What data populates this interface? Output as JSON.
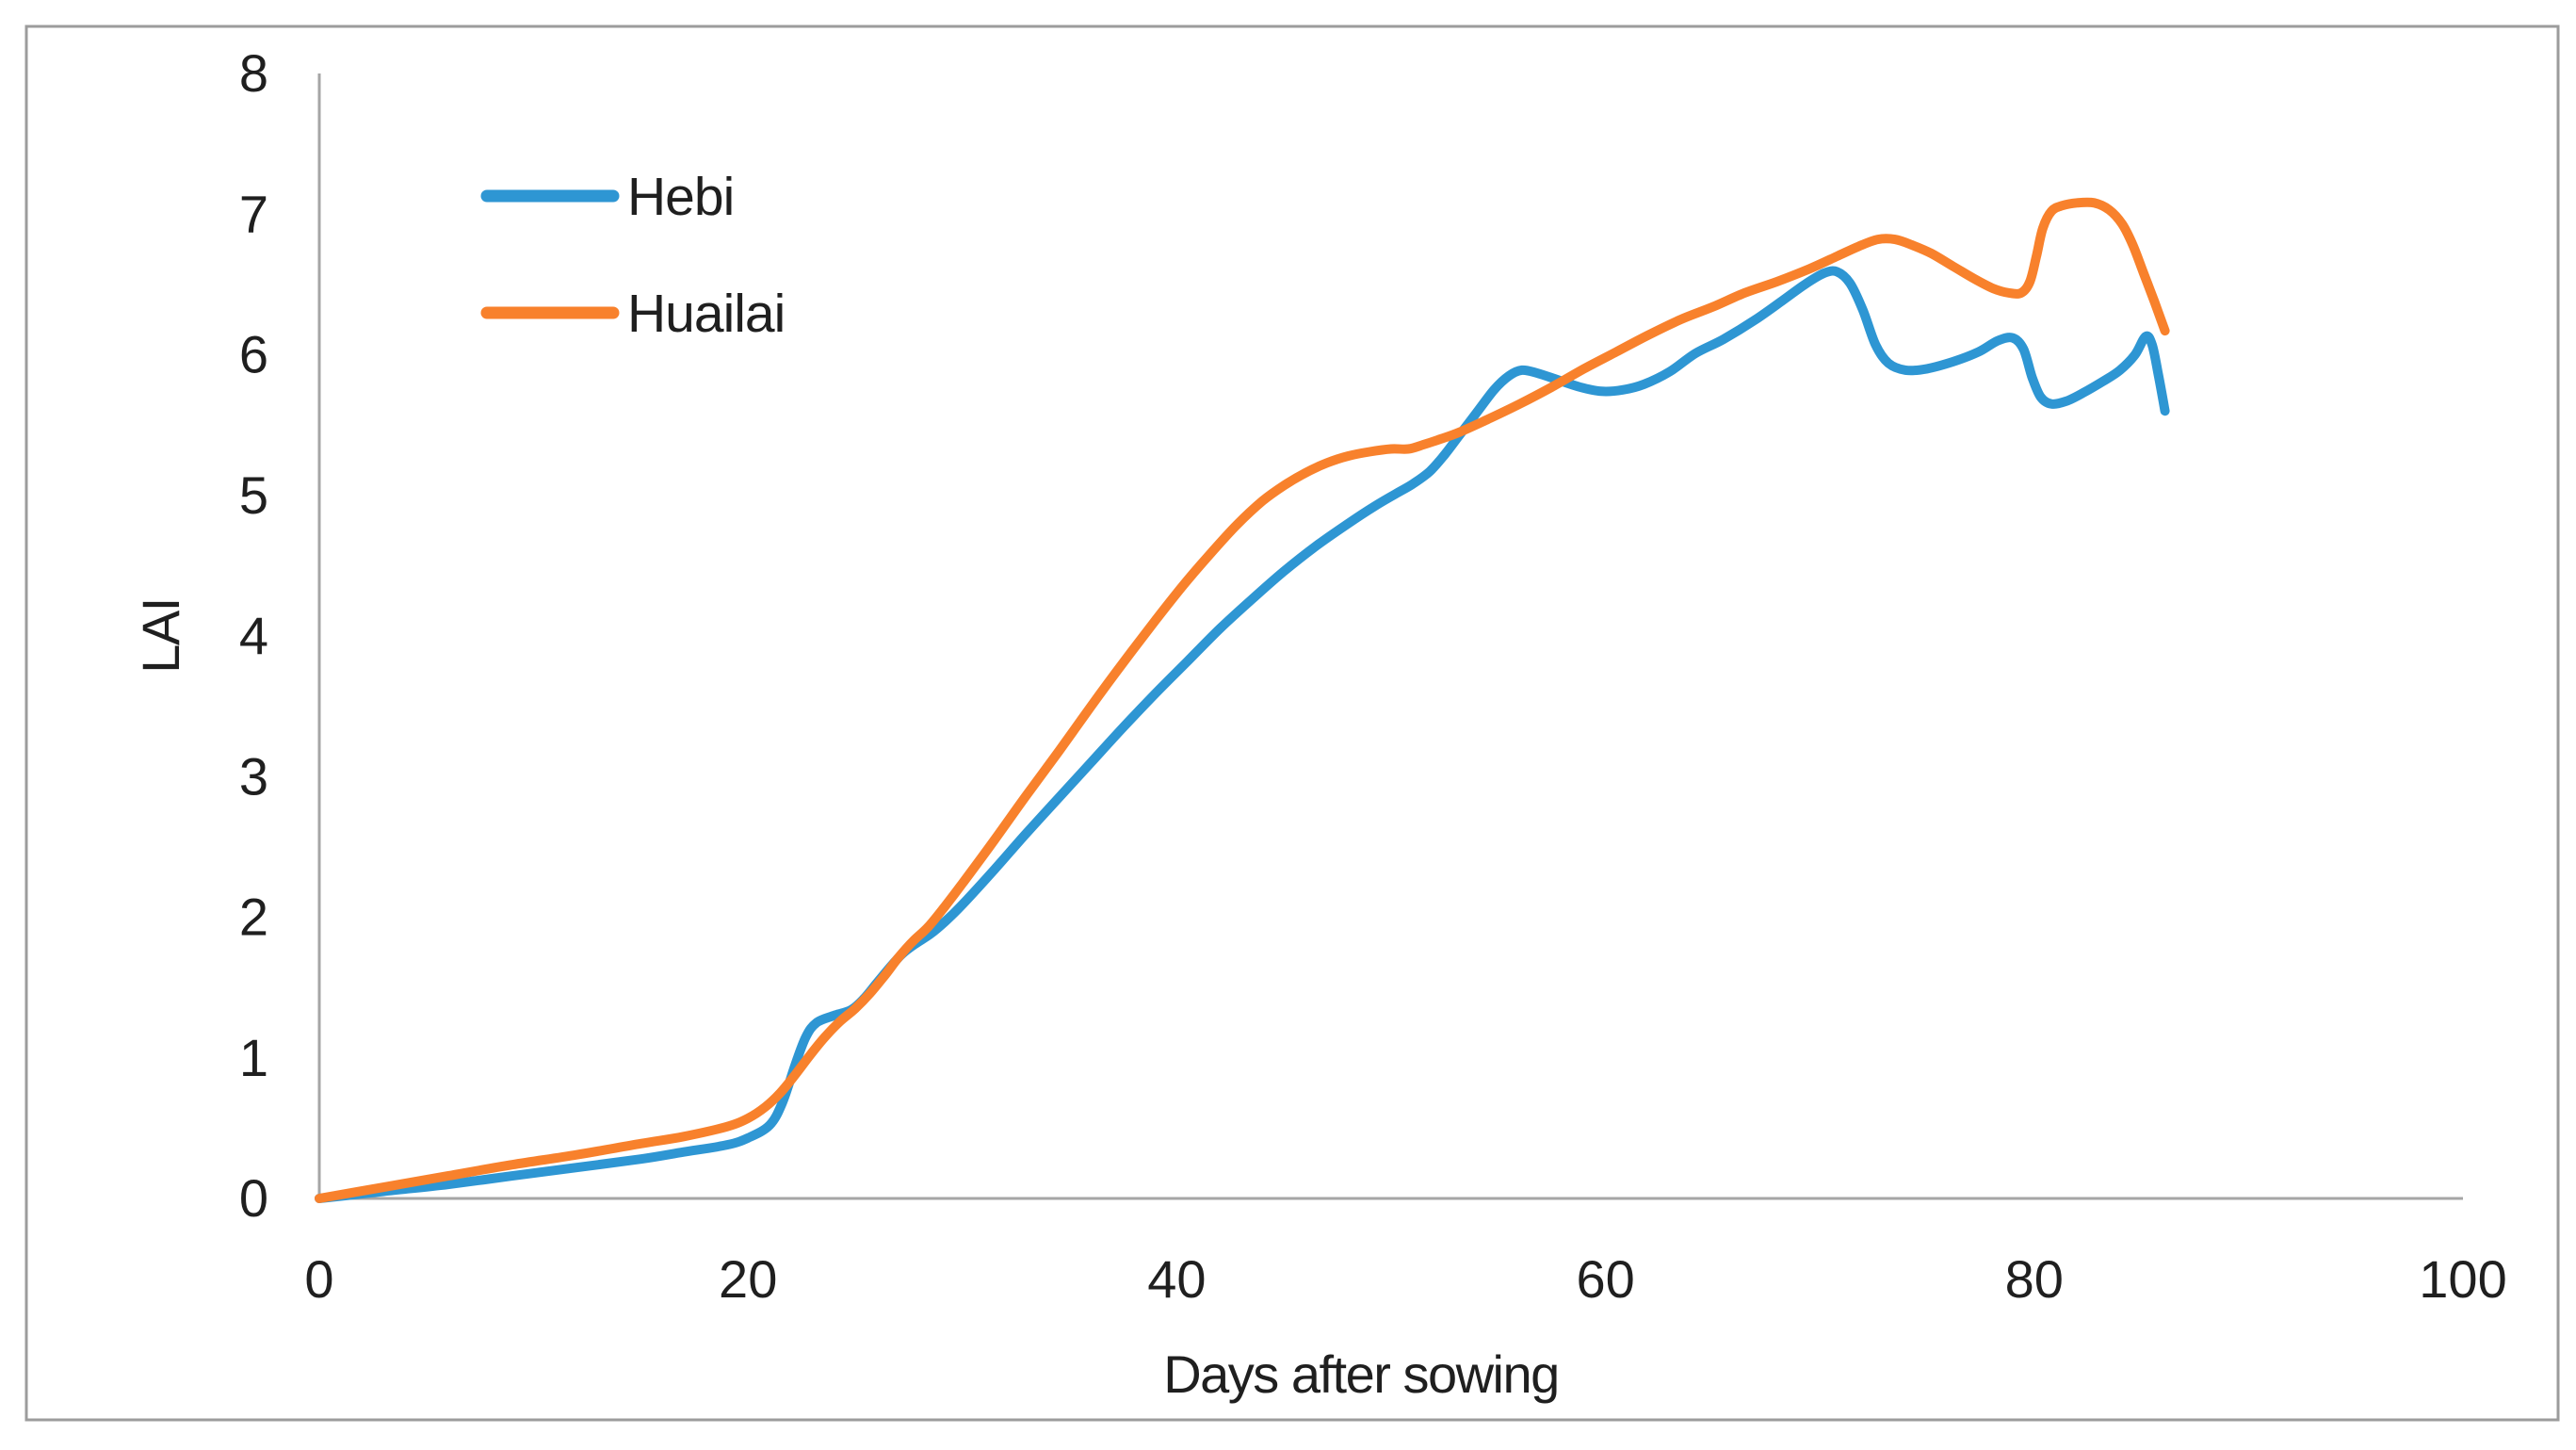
{
  "colors": {
    "background": "#FFFFFF",
    "border": "#9C9C9C",
    "axis": "#A6A6A6",
    "text": "#1F1F1F",
    "hebi_blue": "#2E96D3",
    "huailai_orange": "#F8812C"
  },
  "legend": {
    "items": [
      {
        "label": "Hebi",
        "color": "#2E96D3"
      },
      {
        "label": "Huailai",
        "color": "#F8812C"
      }
    ]
  },
  "chart_data": {
    "type": "line",
    "title": "",
    "xlabel": "Days after sowing",
    "ylabel": "LAI",
    "xlim": [
      0,
      100
    ],
    "ylim": [
      0,
      8
    ],
    "x_ticks": [
      0,
      20,
      40,
      60,
      80,
      100
    ],
    "y_ticks": [
      0,
      1,
      2,
      3,
      4,
      5,
      6,
      7,
      8
    ],
    "grid": false,
    "legend_position": "inside-top-left",
    "series": [
      {
        "name": "Hebi",
        "color": "#2E96D3",
        "points": [
          [
            0,
            0
          ],
          [
            3,
            0.05
          ],
          [
            6,
            0.1
          ],
          [
            9,
            0.16
          ],
          [
            12,
            0.22
          ],
          [
            15,
            0.28
          ],
          [
            17,
            0.33
          ],
          [
            19,
            0.38
          ],
          [
            20,
            0.43
          ],
          [
            21,
            0.52
          ],
          [
            21.6,
            0.68
          ],
          [
            22.2,
            0.95
          ],
          [
            22.7,
            1.15
          ],
          [
            23.2,
            1.25
          ],
          [
            24,
            1.3
          ],
          [
            24.8,
            1.34
          ],
          [
            25.4,
            1.42
          ],
          [
            26,
            1.53
          ],
          [
            26.6,
            1.64
          ],
          [
            27.2,
            1.74
          ],
          [
            27.8,
            1.81
          ],
          [
            28.5,
            1.88
          ],
          [
            29.2,
            1.97
          ],
          [
            30,
            2.09
          ],
          [
            31.5,
            2.34
          ],
          [
            33,
            2.6
          ],
          [
            34.5,
            2.85
          ],
          [
            36,
            3.1
          ],
          [
            37.5,
            3.35
          ],
          [
            39,
            3.59
          ],
          [
            40.5,
            3.82
          ],
          [
            42,
            4.05
          ],
          [
            43.5,
            4.26
          ],
          [
            45,
            4.46
          ],
          [
            46.5,
            4.64
          ],
          [
            48,
            4.8
          ],
          [
            49.2,
            4.92
          ],
          [
            50.2,
            5.01
          ],
          [
            51,
            5.08
          ],
          [
            51.8,
            5.17
          ],
          [
            52.5,
            5.29
          ],
          [
            53.2,
            5.43
          ],
          [
            54,
            5.59
          ],
          [
            54.8,
            5.75
          ],
          [
            55.5,
            5.85
          ],
          [
            56.1,
            5.89
          ],
          [
            56.8,
            5.87
          ],
          [
            57.8,
            5.82
          ],
          [
            58.8,
            5.77
          ],
          [
            59.8,
            5.74
          ],
          [
            60.8,
            5.75
          ],
          [
            61.8,
            5.79
          ],
          [
            63,
            5.88
          ],
          [
            64.2,
            6.01
          ],
          [
            65.5,
            6.11
          ],
          [
            67,
            6.25
          ],
          [
            68.3,
            6.39
          ],
          [
            69.3,
            6.5
          ],
          [
            70.2,
            6.58
          ],
          [
            70.8,
            6.59
          ],
          [
            71.4,
            6.51
          ],
          [
            72,
            6.32
          ],
          [
            72.6,
            6.07
          ],
          [
            73.2,
            5.94
          ],
          [
            74,
            5.89
          ],
          [
            75,
            5.9
          ],
          [
            76.2,
            5.95
          ],
          [
            77.4,
            6.02
          ],
          [
            78.3,
            6.1
          ],
          [
            79,
            6.12
          ],
          [
            79.5,
            6.04
          ],
          [
            79.9,
            5.84
          ],
          [
            80.3,
            5.7
          ],
          [
            80.8,
            5.65
          ],
          [
            81.5,
            5.67
          ],
          [
            82.3,
            5.73
          ],
          [
            83.2,
            5.81
          ],
          [
            84,
            5.89
          ],
          [
            84.7,
            6.0
          ],
          [
            85.2,
            6.13
          ],
          [
            85.5,
            6.07
          ],
          [
            85.8,
            5.85
          ],
          [
            86.1,
            5.6
          ]
        ]
      },
      {
        "name": "Huailai",
        "color": "#F8812C",
        "points": [
          [
            0,
            0
          ],
          [
            3,
            0.08
          ],
          [
            6,
            0.16
          ],
          [
            9,
            0.24
          ],
          [
            12,
            0.31
          ],
          [
            15,
            0.39
          ],
          [
            17,
            0.44
          ],
          [
            19,
            0.51
          ],
          [
            20,
            0.57
          ],
          [
            20.8,
            0.65
          ],
          [
            21.5,
            0.75
          ],
          [
            22.2,
            0.88
          ],
          [
            22.9,
            1.02
          ],
          [
            23.6,
            1.15
          ],
          [
            24.3,
            1.26
          ],
          [
            25,
            1.35
          ],
          [
            25.7,
            1.46
          ],
          [
            26.4,
            1.59
          ],
          [
            27,
            1.71
          ],
          [
            27.7,
            1.83
          ],
          [
            28.4,
            1.93
          ],
          [
            29.2,
            2.08
          ],
          [
            30,
            2.24
          ],
          [
            31.5,
            2.55
          ],
          [
            33,
            2.87
          ],
          [
            34.5,
            3.18
          ],
          [
            36,
            3.5
          ],
          [
            37.5,
            3.81
          ],
          [
            39,
            4.11
          ],
          [
            40.3,
            4.36
          ],
          [
            41.6,
            4.59
          ],
          [
            42.8,
            4.79
          ],
          [
            44,
            4.96
          ],
          [
            45,
            5.07
          ],
          [
            46,
            5.16
          ],
          [
            47,
            5.23
          ],
          [
            48,
            5.28
          ],
          [
            49,
            5.31
          ],
          [
            50,
            5.33
          ],
          [
            50.8,
            5.33
          ],
          [
            51.5,
            5.36
          ],
          [
            52.3,
            5.4
          ],
          [
            53.2,
            5.45
          ],
          [
            54.5,
            5.54
          ],
          [
            56,
            5.65
          ],
          [
            57.5,
            5.77
          ],
          [
            59,
            5.9
          ],
          [
            60.5,
            6.02
          ],
          [
            62,
            6.14
          ],
          [
            63.5,
            6.25
          ],
          [
            65,
            6.34
          ],
          [
            66.5,
            6.44
          ],
          [
            68,
            6.52
          ],
          [
            69.5,
            6.61
          ],
          [
            70.8,
            6.7
          ],
          [
            71.8,
            6.77
          ],
          [
            72.7,
            6.82
          ],
          [
            73.5,
            6.82
          ],
          [
            74.3,
            6.78
          ],
          [
            75.2,
            6.72
          ],
          [
            76.2,
            6.63
          ],
          [
            77.2,
            6.54
          ],
          [
            78.1,
            6.47
          ],
          [
            78.8,
            6.44
          ],
          [
            79.4,
            6.44
          ],
          [
            79.8,
            6.52
          ],
          [
            80.1,
            6.7
          ],
          [
            80.4,
            6.9
          ],
          [
            80.8,
            7.02
          ],
          [
            81.3,
            7.06
          ],
          [
            82,
            7.08
          ],
          [
            82.8,
            7.08
          ],
          [
            83.5,
            7.03
          ],
          [
            84.1,
            6.93
          ],
          [
            84.6,
            6.78
          ],
          [
            85.1,
            6.58
          ],
          [
            85.6,
            6.38
          ],
          [
            86.1,
            6.17
          ]
        ]
      }
    ]
  }
}
